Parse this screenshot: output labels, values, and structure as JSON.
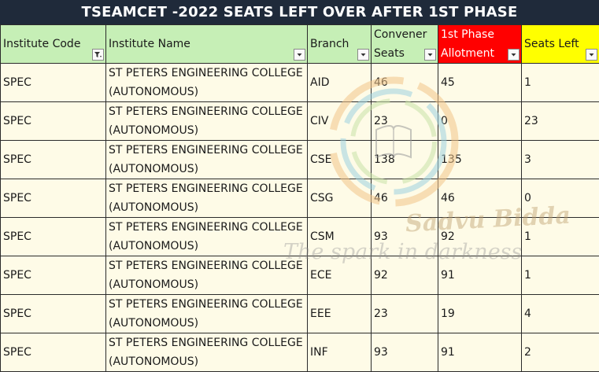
{
  "title": "TSEAMCET -2022 SEATS LEFT OVER AFTER 1ST PHASE",
  "columns": {
    "code": "Institute Code",
    "name": "Institute Name",
    "branch": "Branch",
    "convener": "Convener Seats",
    "allotment": "1st Phase Allotment",
    "left": "Seats Left"
  },
  "rows": [
    {
      "code": "SPEC",
      "name": "ST PETERS ENGINEERING COLLEGE (AUTONOMOUS)",
      "branch": "AID",
      "convener": "46",
      "allotment": "45",
      "left": "1"
    },
    {
      "code": "SPEC",
      "name": "ST PETERS ENGINEERING COLLEGE (AUTONOMOUS)",
      "branch": "CIV",
      "convener": "23",
      "allotment": "0",
      "left": "23"
    },
    {
      "code": "SPEC",
      "name": "ST PETERS ENGINEERING COLLEGE (AUTONOMOUS)",
      "branch": "CSE",
      "convener": "138",
      "allotment": "135",
      "left": "3"
    },
    {
      "code": "SPEC",
      "name": "ST PETERS ENGINEERING COLLEGE (AUTONOMOUS)",
      "branch": "CSG",
      "convener": "46",
      "allotment": "46",
      "left": "0"
    },
    {
      "code": "SPEC",
      "name": "ST PETERS ENGINEERING COLLEGE (AUTONOMOUS)",
      "branch": "CSM",
      "convener": "93",
      "allotment": "92",
      "left": "1"
    },
    {
      "code": "SPEC",
      "name": "ST PETERS ENGINEERING COLLEGE (AUTONOMOUS)",
      "branch": "ECE",
      "convener": "92",
      "allotment": "91",
      "left": "1"
    },
    {
      "code": "SPEC",
      "name": "ST PETERS ENGINEERING COLLEGE (AUTONOMOUS)",
      "branch": "EEE",
      "convener": "23",
      "allotment": "19",
      "left": "4"
    },
    {
      "code": "SPEC",
      "name": "ST PETERS ENGINEERING COLLEGE (AUTONOMOUS)",
      "branch": "INF",
      "convener": "93",
      "allotment": "91",
      "left": "2"
    }
  ],
  "watermark": {
    "brand": "Sadvu Bidda",
    "tagline": "The spark in darkness"
  },
  "colors": {
    "title_bg": "#1f2a3a",
    "header_bg": "#c6efb6",
    "allotment_header_bg": "#ff0000",
    "seats_left_header_bg": "#ffff00",
    "row_bg": "#fefbe7"
  },
  "icons": {
    "filter_active": "funnel-filter-icon",
    "filter_dropdown": "dropdown-arrow-icon"
  }
}
